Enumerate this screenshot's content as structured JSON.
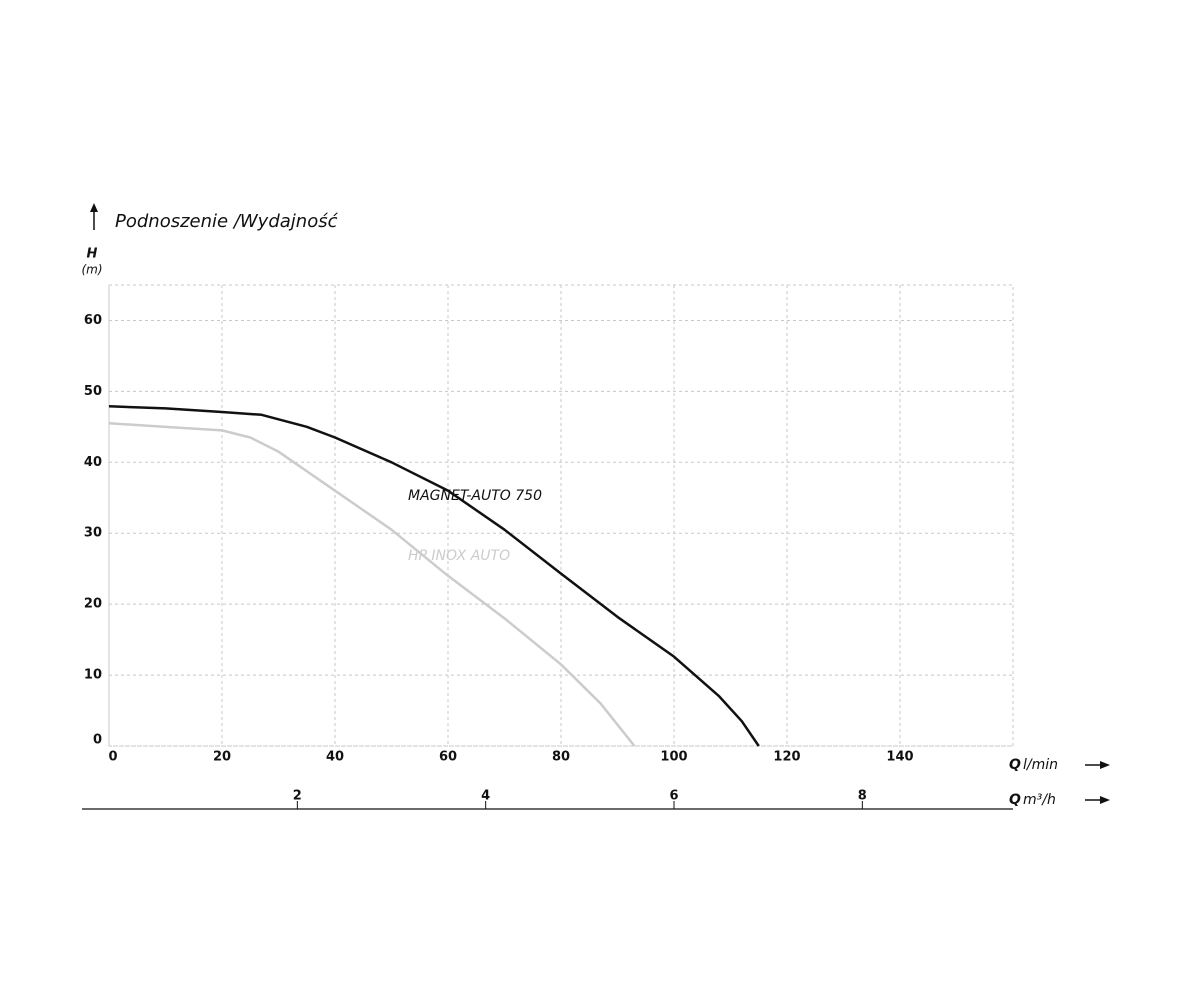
{
  "chart_data": {
    "type": "line",
    "title": "Podnoszenie /Wydajność",
    "y_label": {
      "symbol": "H",
      "unit": "(m)"
    },
    "x_label": {
      "symbol": "Q",
      "unit": "l/min"
    },
    "x2_label": {
      "symbol": "Q",
      "unit": "m³/h"
    },
    "xlim": [
      0,
      160
    ],
    "xticks": [
      0,
      20,
      40,
      60,
      80,
      100,
      120,
      140
    ],
    "ylim": [
      0,
      65
    ],
    "yticks": [
      0,
      10,
      20,
      30,
      40,
      50,
      60
    ],
    "x2lim": [
      0,
      9.6
    ],
    "x2ticks": [
      2,
      4,
      6,
      8
    ],
    "grid": true,
    "series": [
      {
        "name": "MAGNET-AUTO 750",
        "color": "#111111",
        "x": [
          0,
          10,
          20,
          27,
          35,
          40,
          50,
          60,
          70,
          80,
          90,
          100,
          108,
          112,
          115
        ],
        "values": [
          47.9,
          47.6,
          47.1,
          46.7,
          45,
          43.5,
          40,
          36,
          30.5,
          24.3,
          18.2,
          12.6,
          7,
          3.5,
          0
        ]
      },
      {
        "name": "HP INOX AUTO",
        "color": "#cccccc",
        "x": [
          0,
          10,
          20,
          25,
          30,
          40,
          50,
          60,
          70,
          80,
          87,
          91,
          93
        ],
        "values": [
          45.5,
          45,
          44.5,
          43.5,
          41.5,
          36,
          30.5,
          24,
          18,
          11.5,
          6,
          2,
          0
        ]
      }
    ]
  }
}
